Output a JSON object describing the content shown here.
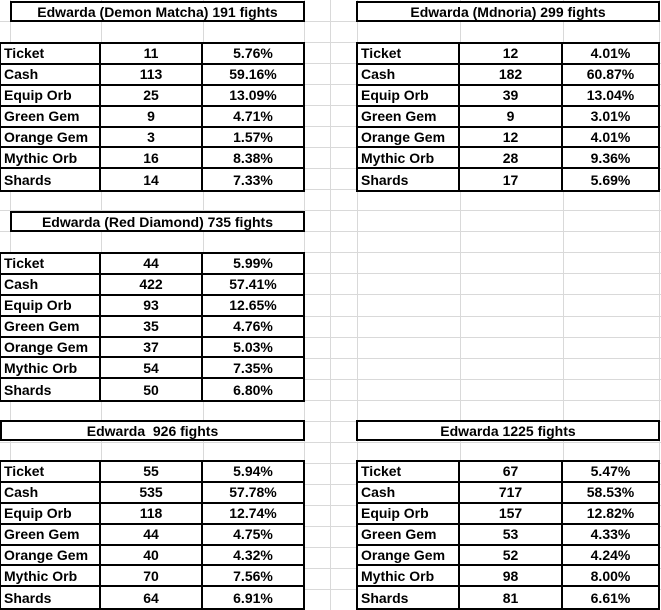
{
  "sheet": {
    "background": "#ffffff",
    "gridline_color": "#d9d9d9",
    "table_border_color": "#000000",
    "text_color": "#000000"
  },
  "tables": [
    {
      "id": "demon-matcha",
      "title": "Edwarda (Demon Matcha) 191 fights",
      "rows": [
        {
          "label": "Ticket",
          "count": "11",
          "pct": "5.76%"
        },
        {
          "label": "Cash",
          "count": "113",
          "pct": "59.16%"
        },
        {
          "label": "Equip Orb",
          "count": "25",
          "pct": "13.09%"
        },
        {
          "label": "Green Gem",
          "count": "9",
          "pct": "4.71%"
        },
        {
          "label": "Orange Gem",
          "count": "3",
          "pct": "1.57%"
        },
        {
          "label": "Mythic Orb",
          "count": "16",
          "pct": "8.38%"
        },
        {
          "label": "Shards",
          "count": "14",
          "pct": "7.33%"
        }
      ]
    },
    {
      "id": "mdnoria",
      "title": "Edwarda (Mdnoria) 299 fights",
      "rows": [
        {
          "label": "Ticket",
          "count": "12",
          "pct": "4.01%"
        },
        {
          "label": "Cash",
          "count": "182",
          "pct": "60.87%"
        },
        {
          "label": "Equip Orb",
          "count": "39",
          "pct": "13.04%"
        },
        {
          "label": "Green Gem",
          "count": "9",
          "pct": "3.01%"
        },
        {
          "label": "Orange Gem",
          "count": "12",
          "pct": "4.01%"
        },
        {
          "label": "Mythic Orb",
          "count": "28",
          "pct": "9.36%"
        },
        {
          "label": "Shards",
          "count": "17",
          "pct": "5.69%"
        }
      ]
    },
    {
      "id": "red-diamond",
      "title": "Edwarda (Red Diamond) 735 fights",
      "rows": [
        {
          "label": "Ticket",
          "count": "44",
          "pct": "5.99%"
        },
        {
          "label": "Cash",
          "count": "422",
          "pct": "57.41%"
        },
        {
          "label": "Equip Orb",
          "count": "93",
          "pct": "12.65%"
        },
        {
          "label": "Green Gem",
          "count": "35",
          "pct": "4.76%"
        },
        {
          "label": "Orange Gem",
          "count": "37",
          "pct": "5.03%"
        },
        {
          "label": "Mythic Orb",
          "count": "54",
          "pct": "7.35%"
        },
        {
          "label": "Shards",
          "count": "50",
          "pct": "6.80%"
        }
      ]
    },
    {
      "id": "edwarda-926",
      "title": "Edwarda  926 fights",
      "rows": [
        {
          "label": "Ticket",
          "count": "55",
          "pct": "5.94%"
        },
        {
          "label": "Cash",
          "count": "535",
          "pct": "57.78%"
        },
        {
          "label": "Equip Orb",
          "count": "118",
          "pct": "12.74%"
        },
        {
          "label": "Green Gem",
          "count": "44",
          "pct": "4.75%"
        },
        {
          "label": "Orange Gem",
          "count": "40",
          "pct": "4.32%"
        },
        {
          "label": "Mythic Orb",
          "count": "70",
          "pct": "7.56%"
        },
        {
          "label": "Shards",
          "count": "64",
          "pct": "6.91%"
        }
      ]
    },
    {
      "id": "edwarda-1225",
      "title": "Edwarda 1225 fights",
      "rows": [
        {
          "label": "Ticket",
          "count": "67",
          "pct": "5.47%"
        },
        {
          "label": "Cash",
          "count": "717",
          "pct": "58.53%"
        },
        {
          "label": "Equip Orb",
          "count": "157",
          "pct": "12.82%"
        },
        {
          "label": "Green Gem",
          "count": "53",
          "pct": "4.33%"
        },
        {
          "label": "Orange Gem",
          "count": "52",
          "pct": "4.24%"
        },
        {
          "label": "Mythic Orb",
          "count": "98",
          "pct": "8.00%"
        },
        {
          "label": "Shards",
          "count": "81",
          "pct": "6.61%"
        }
      ]
    }
  ]
}
